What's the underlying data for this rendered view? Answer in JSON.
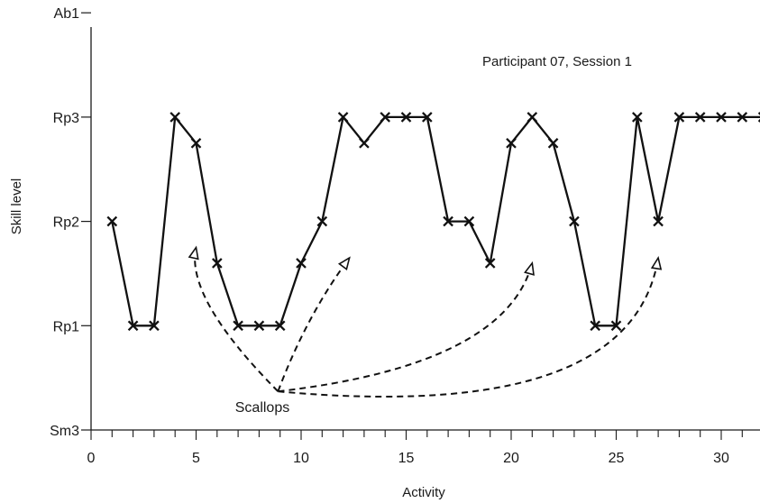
{
  "chart_data": {
    "type": "line",
    "title": "Participant 07, Session 1",
    "xlabel": "Activity",
    "ylabel": "Skill level",
    "xlim": [
      0,
      32
    ],
    "x_ticks": [
      0,
      5,
      10,
      15,
      20,
      25,
      30
    ],
    "x_minor_step": 1,
    "y_levels": [
      "Sm3",
      "Rp1",
      "Rp2",
      "Rp3",
      "Ab1"
    ],
    "ylim": [
      0,
      4
    ],
    "grid": false,
    "series": [
      {
        "marker": "x",
        "x": [
          1,
          2,
          3,
          4,
          5,
          6,
          7,
          8,
          9,
          10,
          11,
          12,
          13,
          14,
          15,
          16,
          17,
          18,
          19,
          20,
          21,
          22,
          23,
          24,
          25,
          26,
          27,
          28,
          29,
          30,
          31,
          32
        ],
        "y": [
          2,
          1,
          1,
          3,
          2.75,
          1.6,
          1,
          1,
          1,
          1.6,
          2,
          3,
          2.75,
          3,
          3,
          3,
          2,
          2,
          1.6,
          2.75,
          3,
          2.75,
          2,
          1,
          1,
          3,
          2,
          3,
          3,
          3,
          3,
          3
        ]
      }
    ],
    "annotations": [
      {
        "text": "Scallops",
        "x": 8.9,
        "y": 0.37,
        "targets": [
          [
            5,
            1.75
          ],
          [
            12.3,
            1.65
          ],
          [
            21,
            1.6
          ],
          [
            27,
            1.65
          ]
        ]
      }
    ]
  }
}
